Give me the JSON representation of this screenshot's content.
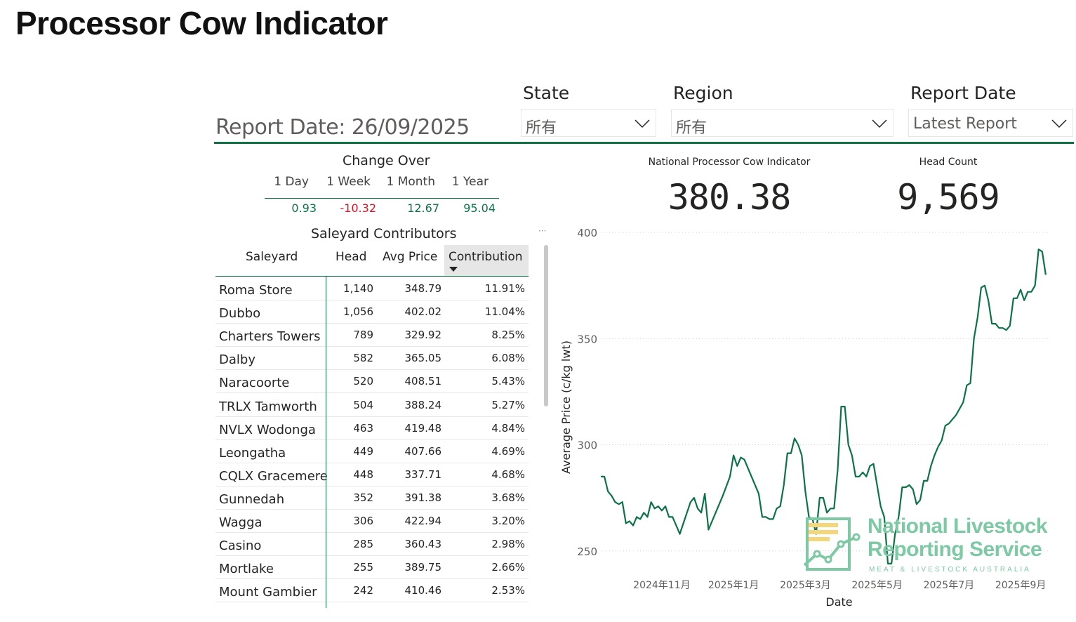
{
  "page": {
    "title": "Processor Cow Indicator",
    "report_date_text": "Report Date: 26/09/2025"
  },
  "filters": {
    "state": {
      "label": "State",
      "value": "所有"
    },
    "region": {
      "label": "Region",
      "value": "所有"
    },
    "report_date": {
      "label": "Report Date",
      "value": "Latest Report"
    }
  },
  "change_over": {
    "title": "Change Over",
    "headers": [
      "1 Day",
      "1 Week",
      "1 Month",
      "1 Year"
    ],
    "values": [
      "0.93",
      "-10.32",
      "12.67",
      "95.04"
    ],
    "colors": {
      "positive": "#0b7346",
      "negative": "#e81123"
    }
  },
  "kpis": {
    "indicator": {
      "label": "National Processor Cow Indicator",
      "value": "380.38"
    },
    "head_count": {
      "label": "Head Count",
      "value": "9,569"
    }
  },
  "saleyards": {
    "title": "Saleyard Contributors",
    "columns": [
      "Saleyard",
      "Head",
      "Avg Price",
      "Contribution"
    ],
    "rows": [
      {
        "name": "Roma Store",
        "head": "1,140",
        "price": "348.79",
        "contribution": "11.91%"
      },
      {
        "name": "Dubbo",
        "head": "1,056",
        "price": "402.02",
        "contribution": "11.04%"
      },
      {
        "name": "Charters Towers",
        "head": "789",
        "price": "329.92",
        "contribution": "8.25%"
      },
      {
        "name": "Dalby",
        "head": "582",
        "price": "365.05",
        "contribution": "6.08%"
      },
      {
        "name": "Naracoorte",
        "head": "520",
        "price": "408.51",
        "contribution": "5.43%"
      },
      {
        "name": "TRLX Tamworth",
        "head": "504",
        "price": "388.24",
        "contribution": "5.27%"
      },
      {
        "name": "NVLX Wodonga",
        "head": "463",
        "price": "419.48",
        "contribution": "4.84%"
      },
      {
        "name": "Leongatha",
        "head": "449",
        "price": "407.66",
        "contribution": "4.69%"
      },
      {
        "name": "CQLX Gracemere",
        "head": "448",
        "price": "337.71",
        "contribution": "4.68%"
      },
      {
        "name": "Gunnedah",
        "head": "352",
        "price": "391.38",
        "contribution": "3.68%"
      },
      {
        "name": "Wagga",
        "head": "306",
        "price": "422.94",
        "contribution": "3.20%"
      },
      {
        "name": "Casino",
        "head": "285",
        "price": "360.43",
        "contribution": "2.98%"
      },
      {
        "name": "Mortlake",
        "head": "255",
        "price": "389.75",
        "contribution": "2.66%"
      },
      {
        "name": "Mount Gambier",
        "head": "242",
        "price": "410.46",
        "contribution": "2.53%"
      }
    ]
  },
  "chart_data": {
    "type": "line",
    "title": "",
    "xlabel": "Date",
    "ylabel": "Average Price (c/kg lwt)",
    "ylim": [
      240,
      402
    ],
    "y_ticks": [
      250,
      300,
      350,
      400
    ],
    "x_tick_labels": [
      "2024年11月",
      "2025年1月",
      "2025年3月",
      "2025年5月",
      "2025年7月",
      "2025年9月"
    ],
    "x_tick_positions": [
      1,
      3,
      5,
      7,
      9,
      11
    ],
    "x_range": [
      -0.7,
      11.8
    ],
    "grid": true,
    "series": [
      {
        "name": "National Processor Cow Indicator",
        "color": "#0b7346",
        "points": [
          [
            -0.7,
            285
          ],
          [
            -0.6,
            285
          ],
          [
            -0.5,
            278
          ],
          [
            -0.4,
            276
          ],
          [
            -0.3,
            273
          ],
          [
            -0.2,
            272
          ],
          [
            -0.1,
            273
          ],
          [
            0.0,
            263
          ],
          [
            0.1,
            264
          ],
          [
            0.2,
            262
          ],
          [
            0.3,
            266
          ],
          [
            0.4,
            265
          ],
          [
            0.5,
            268
          ],
          [
            0.6,
            266
          ],
          [
            0.7,
            273
          ],
          [
            0.8,
            270
          ],
          [
            0.9,
            271
          ],
          [
            1.0,
            269
          ],
          [
            1.1,
            271
          ],
          [
            1.2,
            266
          ],
          [
            1.3,
            266
          ],
          [
            1.4,
            262
          ],
          [
            1.5,
            258
          ],
          [
            1.6,
            263
          ],
          [
            1.7,
            268
          ],
          [
            1.8,
            273
          ],
          [
            1.9,
            275
          ],
          [
            2.0,
            270
          ],
          [
            2.1,
            268
          ],
          [
            2.2,
            277
          ],
          [
            2.3,
            260
          ],
          [
            2.5,
            268
          ],
          [
            2.7,
            276
          ],
          [
            2.9,
            285
          ],
          [
            3.0,
            295
          ],
          [
            3.1,
            290
          ],
          [
            3.2,
            294
          ],
          [
            3.3,
            293
          ],
          [
            3.5,
            285
          ],
          [
            3.7,
            277
          ],
          [
            3.8,
            266
          ],
          [
            3.9,
            266
          ],
          [
            4.0,
            265
          ],
          [
            4.1,
            265
          ],
          [
            4.2,
            270
          ],
          [
            4.3,
            271
          ],
          [
            4.4,
            281
          ],
          [
            4.5,
            296
          ],
          [
            4.6,
            296
          ],
          [
            4.7,
            303
          ],
          [
            4.8,
            300
          ],
          [
            4.9,
            295
          ],
          [
            5.0,
            278
          ],
          [
            5.1,
            266
          ],
          [
            5.2,
            265
          ],
          [
            5.3,
            258
          ],
          [
            5.4,
            275
          ],
          [
            5.5,
            275
          ],
          [
            5.6,
            268
          ],
          [
            5.7,
            270
          ],
          [
            5.8,
            270
          ],
          [
            5.9,
            288
          ],
          [
            6.0,
            318
          ],
          [
            6.1,
            318
          ],
          [
            6.2,
            300
          ],
          [
            6.3,
            295
          ],
          [
            6.4,
            285
          ],
          [
            6.5,
            285
          ],
          [
            6.6,
            287
          ],
          [
            6.7,
            285
          ],
          [
            6.8,
            290
          ],
          [
            6.9,
            291
          ],
          [
            7.0,
            281
          ],
          [
            7.1,
            271
          ],
          [
            7.2,
            266
          ],
          [
            7.3,
            244
          ],
          [
            7.4,
            244
          ],
          [
            7.5,
            258
          ],
          [
            7.6,
            266
          ],
          [
            7.7,
            280
          ],
          [
            7.8,
            280
          ],
          [
            7.9,
            281
          ],
          [
            8.0,
            279
          ],
          [
            8.1,
            272
          ],
          [
            8.2,
            274
          ],
          [
            8.3,
            283
          ],
          [
            8.4,
            283
          ],
          [
            8.5,
            290
          ],
          [
            8.6,
            295
          ],
          [
            8.7,
            299
          ],
          [
            8.8,
            302
          ],
          [
            8.9,
            309
          ],
          [
            9.0,
            310
          ],
          [
            9.2,
            314
          ],
          [
            9.4,
            320
          ],
          [
            9.5,
            328
          ],
          [
            9.6,
            329
          ],
          [
            9.7,
            350
          ],
          [
            9.8,
            360
          ],
          [
            9.9,
            374
          ],
          [
            10.0,
            375
          ],
          [
            10.1,
            368
          ],
          [
            10.2,
            357
          ],
          [
            10.3,
            357
          ],
          [
            10.4,
            355
          ],
          [
            10.5,
            355
          ],
          [
            10.6,
            354
          ],
          [
            10.7,
            356
          ],
          [
            10.8,
            369
          ],
          [
            10.9,
            369
          ],
          [
            11.0,
            373
          ],
          [
            11.1,
            368
          ],
          [
            11.2,
            372
          ],
          [
            11.3,
            372
          ],
          [
            11.4,
            375
          ],
          [
            11.5,
            392
          ],
          [
            11.6,
            391
          ],
          [
            11.7,
            380
          ]
        ]
      }
    ]
  },
  "watermark": {
    "line1": "National Livestock",
    "line2": "Reporting Service",
    "line3": "MEAT & LIVESTOCK AUSTRALIA"
  }
}
